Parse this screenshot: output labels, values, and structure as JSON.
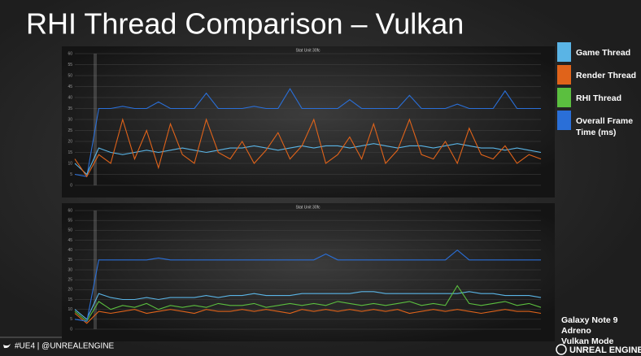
{
  "title": "RHI Thread Comparison – Vulkan",
  "chart_data": [
    {
      "type": "line",
      "title": "Stat Unit 30fc",
      "ylim": [
        0,
        60
      ],
      "yticks": [
        0,
        5,
        10,
        15,
        20,
        25,
        30,
        35,
        40,
        45,
        50,
        55,
        60
      ],
      "grid": true,
      "series": [
        {
          "color": "#2a6fd8",
          "values": [
            5,
            4,
            35,
            35,
            36,
            35,
            35,
            38,
            35,
            35,
            35,
            42,
            35,
            35,
            35,
            36,
            35,
            35,
            44,
            35,
            35,
            35,
            35,
            39,
            35,
            35,
            35,
            35,
            41,
            35,
            35,
            35,
            37,
            35,
            35,
            35,
            43,
            35,
            35,
            35
          ]
        },
        {
          "color": "#5ab4e5",
          "values": [
            10,
            5,
            17,
            15,
            14,
            15,
            16,
            15,
            16,
            17,
            16,
            15,
            16,
            17,
            17,
            18,
            17,
            16,
            17,
            18,
            17,
            18,
            18,
            17,
            18,
            19,
            18,
            17,
            18,
            18,
            17,
            18,
            19,
            18,
            17,
            17,
            16,
            17,
            16,
            15
          ]
        },
        {
          "color": "#e0631a",
          "values": [
            12,
            4,
            14,
            10,
            30,
            12,
            25,
            8,
            28,
            14,
            10,
            30,
            15,
            12,
            20,
            10,
            16,
            24,
            12,
            18,
            30,
            10,
            14,
            22,
            12,
            28,
            10,
            16,
            30,
            14,
            12,
            20,
            10,
            26,
            14,
            12,
            18,
            10,
            14,
            12
          ]
        }
      ]
    },
    {
      "type": "line",
      "title": "Stat Unit 30fc",
      "ylim": [
        0,
        60
      ],
      "yticks": [
        0,
        5,
        10,
        15,
        20,
        25,
        30,
        35,
        40,
        45,
        50,
        55,
        60
      ],
      "grid": true,
      "series": [
        {
          "name": "Game Thread",
          "color": "#5ab4e5",
          "values": [
            10,
            5,
            18,
            16,
            15,
            15,
            16,
            15,
            16,
            16,
            16,
            17,
            16,
            17,
            17,
            18,
            17,
            17,
            17,
            18,
            18,
            18,
            18,
            18,
            19,
            19,
            18,
            18,
            18,
            18,
            18,
            18,
            18,
            19,
            18,
            18,
            17,
            17,
            17,
            16
          ]
        },
        {
          "name": "Render Thread",
          "color": "#e0631a",
          "values": [
            8,
            3,
            9,
            8,
            9,
            10,
            8,
            9,
            10,
            9,
            8,
            10,
            9,
            9,
            10,
            9,
            10,
            9,
            8,
            10,
            9,
            10,
            9,
            10,
            9,
            10,
            9,
            10,
            8,
            9,
            10,
            9,
            10,
            9,
            8,
            9,
            10,
            9,
            9,
            8
          ]
        },
        {
          "name": "RHI Thread",
          "color": "#5bbf3f",
          "values": [
            9,
            4,
            14,
            10,
            12,
            11,
            13,
            10,
            12,
            11,
            12,
            11,
            13,
            12,
            12,
            13,
            11,
            12,
            13,
            12,
            13,
            12,
            14,
            13,
            12,
            13,
            12,
            13,
            14,
            12,
            13,
            12,
            22,
            13,
            12,
            13,
            14,
            12,
            13,
            11
          ]
        },
        {
          "name": "Overall Frame Time (ms)",
          "color": "#2a6fd8",
          "values": [
            5,
            4,
            35,
            35,
            35,
            35,
            35,
            36,
            35,
            35,
            35,
            35,
            35,
            35,
            35,
            35,
            35,
            35,
            35,
            35,
            35,
            38,
            35,
            35,
            35,
            35,
            35,
            35,
            35,
            35,
            35,
            35,
            40,
            35,
            35,
            35,
            35,
            35,
            35,
            35
          ]
        }
      ]
    }
  ],
  "device": [
    "Galaxy Note 9",
    "Adreno",
    "Vulkan Mode"
  ],
  "footer": "#UE4 | @UNREALENGINE",
  "logo": "UNREAL ENGINE"
}
